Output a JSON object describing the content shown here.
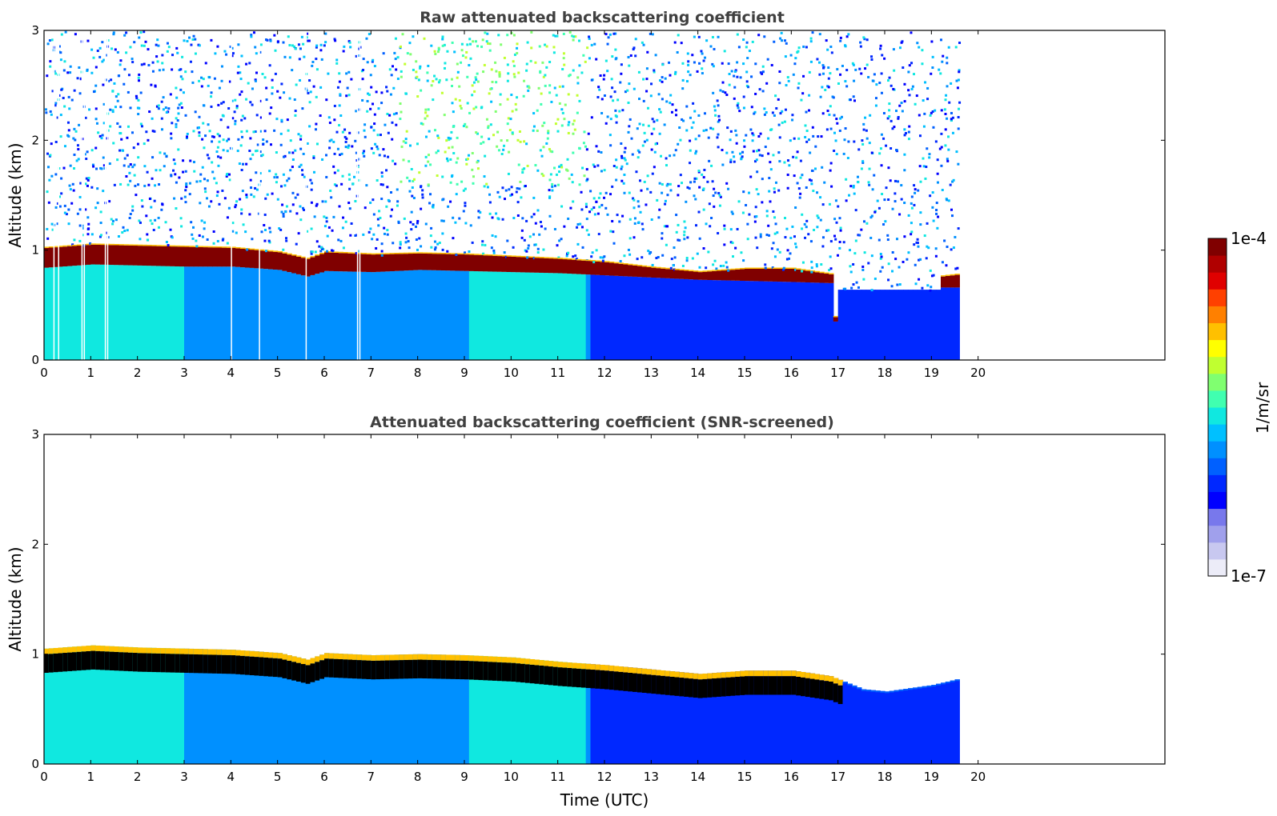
{
  "chart_data": [
    {
      "type": "heatmap",
      "title": "Raw attenuated backscattering coefficient",
      "xlabel": "",
      "ylabel": "Altitude (km)",
      "xlim": [
        0,
        24
      ],
      "ylim": [
        0,
        3
      ],
      "xticks": [
        "0",
        "1",
        "2",
        "3",
        "4",
        "5",
        "6",
        "7",
        "8",
        "9",
        "10",
        "11",
        "12",
        "13",
        "14",
        "15",
        "16",
        "17",
        "18",
        "19",
        "20"
      ],
      "yticks": [
        "0",
        "1",
        "2",
        "3"
      ],
      "data_extent_hours": [
        0,
        19.6
      ],
      "cloud_base_km": [
        [
          0.0,
          0.84
        ],
        [
          1.0,
          0.87
        ],
        [
          2.0,
          0.86
        ],
        [
          3.0,
          0.85
        ],
        [
          4.0,
          0.85
        ],
        [
          5.0,
          0.82
        ],
        [
          5.6,
          0.76
        ],
        [
          6.0,
          0.81
        ],
        [
          7.0,
          0.8
        ],
        [
          8.0,
          0.82
        ],
        [
          9.0,
          0.81
        ],
        [
          10.0,
          0.8
        ],
        [
          11.0,
          0.79
        ],
        [
          12.0,
          0.77
        ],
        [
          13.0,
          0.75
        ],
        [
          14.0,
          0.73
        ],
        [
          15.0,
          0.72
        ],
        [
          16.0,
          0.71
        ],
        [
          16.8,
          0.7
        ],
        [
          17.0,
          0.0
        ],
        [
          19.1,
          0.0
        ],
        [
          19.2,
          0.66
        ],
        [
          19.6,
          0.66
        ]
      ],
      "cloud_top_km": [
        [
          0.0,
          1.02
        ],
        [
          1.0,
          1.05
        ],
        [
          2.0,
          1.04
        ],
        [
          3.0,
          1.03
        ],
        [
          4.0,
          1.02
        ],
        [
          5.0,
          0.98
        ],
        [
          5.6,
          0.92
        ],
        [
          6.0,
          0.98
        ],
        [
          7.0,
          0.96
        ],
        [
          8.0,
          0.97
        ],
        [
          9.0,
          0.96
        ],
        [
          10.0,
          0.94
        ],
        [
          11.0,
          0.92
        ],
        [
          12.0,
          0.89
        ],
        [
          13.0,
          0.84
        ],
        [
          14.0,
          0.8
        ],
        [
          15.0,
          0.83
        ],
        [
          16.0,
          0.83
        ],
        [
          16.8,
          0.78
        ],
        [
          17.0,
          0.0
        ],
        [
          19.1,
          0.0
        ],
        [
          19.2,
          0.76
        ],
        [
          19.6,
          0.78
        ]
      ],
      "gap_hours": [
        0.2,
        0.3,
        0.8,
        0.85,
        1.3,
        1.35,
        4.0,
        4.6,
        5.6,
        6.7,
        6.75
      ]
    },
    {
      "type": "heatmap",
      "title": "Attenuated backscattering coefficient (SNR-screened)",
      "xlabel": "Time (UTC)",
      "ylabel": "Altitude (km)",
      "xlim": [
        0,
        24
      ],
      "ylim": [
        0,
        3
      ],
      "xticks": [
        "0",
        "1",
        "2",
        "3",
        "4",
        "5",
        "6",
        "7",
        "8",
        "9",
        "10",
        "11",
        "12",
        "13",
        "14",
        "15",
        "16",
        "17",
        "18",
        "19",
        "20"
      ],
      "yticks": [
        "0",
        "1",
        "2",
        "3"
      ],
      "data_extent_hours": [
        0,
        19.6
      ],
      "signal_top_km": [
        [
          0.0,
          1.05
        ],
        [
          1.0,
          1.08
        ],
        [
          2.0,
          1.06
        ],
        [
          3.0,
          1.05
        ],
        [
          4.0,
          1.04
        ],
        [
          5.0,
          1.01
        ],
        [
          5.6,
          0.95
        ],
        [
          6.0,
          1.01
        ],
        [
          7.0,
          0.99
        ],
        [
          8.0,
          1.0
        ],
        [
          9.0,
          0.99
        ],
        [
          10.0,
          0.97
        ],
        [
          11.0,
          0.93
        ],
        [
          12.0,
          0.9
        ],
        [
          13.0,
          0.86
        ],
        [
          14.0,
          0.82
        ],
        [
          15.0,
          0.85
        ],
        [
          16.0,
          0.85
        ],
        [
          16.8,
          0.8
        ],
        [
          17.5,
          0.68
        ],
        [
          18.0,
          0.66
        ],
        [
          19.0,
          0.72
        ],
        [
          19.6,
          0.78
        ]
      ]
    }
  ],
  "colorbar": {
    "label": "1/m/sr",
    "max_label": "1e-4",
    "min_label": "1e-7",
    "colors": [
      "#ececf8",
      "#c8c8f0",
      "#a0a0ec",
      "#7878ec",
      "#0000ff",
      "#0028ff",
      "#0060ff",
      "#0090ff",
      "#00c0ff",
      "#10e8e0",
      "#40ffb0",
      "#80ff70",
      "#c0ff30",
      "#ffff00",
      "#ffc000",
      "#ff8000",
      "#ff4000",
      "#e00000",
      "#b00000",
      "#800000"
    ]
  }
}
